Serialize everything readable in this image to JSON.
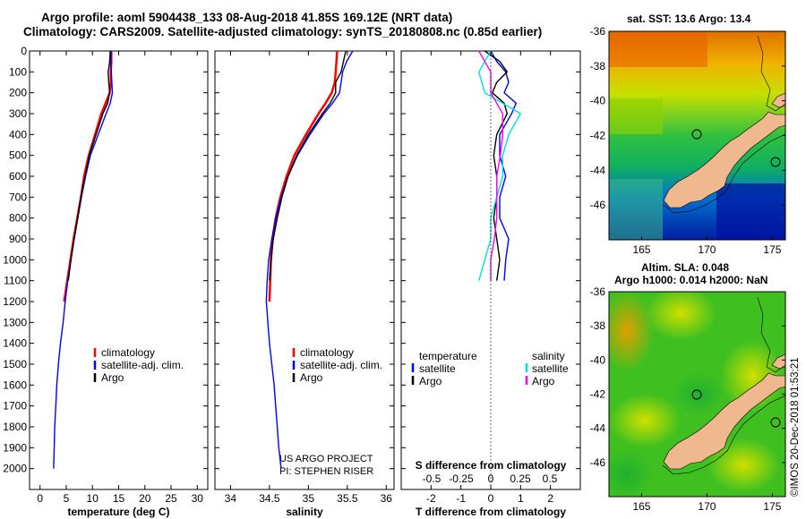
{
  "title_line1": "Argo profile: aoml 5904438_133 08-Aug-2018 41.85S 169.12E (NRT data)",
  "title_line2": "Climatology: CARS2009. Satellite-adjusted climatology: synTS_20180808.nc (0.85d earlier)",
  "map_sst_title": "sat. SST: 13.6 Argo: 13.4",
  "map_sla_title1": "Altim. SLA: 0.048",
  "map_sla_title2": "Argo h1000: 0.014 h2000: NaN",
  "credit_project": "US ARGO PROJECT",
  "credit_pi": "PI: STEPHEN RISER",
  "timestamp": "©IMOS 20-Dec-2018 01:53:21",
  "colors": {
    "climatology": "#ff0000",
    "satellite": "#0000ff",
    "argo": "#000000",
    "sat_salinity": "#00e0e0",
    "argo_salinity": "#ff00ff",
    "land": "#efb88e"
  },
  "chart_data": [
    {
      "type": "line",
      "name": "temperature-profile",
      "xlabel": "temperature (deg C)",
      "ylabel": "",
      "xlim": [
        -2,
        32
      ],
      "ylim": [
        2100,
        0
      ],
      "xticks": [
        0,
        5,
        10,
        15,
        20,
        25,
        30
      ],
      "yticks": [
        0,
        100,
        200,
        300,
        400,
        500,
        600,
        700,
        800,
        900,
        1000,
        1100,
        1200,
        1300,
        1400,
        1500,
        1600,
        1700,
        1800,
        1900,
        2000
      ],
      "legend": [
        "climatology",
        "satellite-adj. clim.",
        "Argo"
      ],
      "series": [
        {
          "name": "climatology",
          "color": "#ff0000",
          "depth": [
            0,
            50,
            100,
            150,
            200,
            250,
            300,
            400,
            500,
            600,
            700,
            800,
            900,
            1000,
            1100,
            1200
          ],
          "values": [
            13.6,
            13.6,
            13.5,
            13.5,
            13.3,
            12.5,
            11.7,
            10.5,
            9.3,
            8.4,
            7.8,
            7.1,
            6.4,
            5.8,
            5.2,
            4.6
          ]
        },
        {
          "name": "satellite-adj. clim.",
          "color": "#0000ff",
          "depth": [
            0,
            50,
            100,
            150,
            200,
            250,
            300,
            400,
            500,
            600,
            700,
            800,
            900,
            1000,
            1100,
            1200,
            1300,
            1400,
            1500,
            1600,
            1700,
            1800,
            1900,
            2000
          ],
          "values": [
            13.6,
            13.5,
            13.6,
            13.7,
            13.8,
            13.4,
            12.6,
            11.1,
            9.6,
            8.7,
            7.9,
            7.2,
            6.5,
            5.9,
            5.3,
            4.8,
            4.4,
            3.9,
            3.5,
            3.2,
            3.0,
            2.8,
            2.7,
            2.6
          ]
        },
        {
          "name": "Argo",
          "color": "#000000",
          "depth": [
            0,
            50,
            100,
            150,
            200,
            250,
            300,
            400,
            500,
            600,
            700,
            800,
            900,
            1000,
            1100
          ],
          "values": [
            13.4,
            13.3,
            13.0,
            13.1,
            13.3,
            12.9,
            12.0,
            10.7,
            9.4,
            8.6,
            7.8,
            7.2,
            6.5,
            5.9,
            5.4
          ]
        }
      ]
    },
    {
      "type": "line",
      "name": "salinity-profile",
      "xlabel": "salinity",
      "ylabel": "",
      "xlim": [
        33.8,
        36.1
      ],
      "ylim": [
        2100,
        0
      ],
      "xticks": [
        34,
        34.5,
        35,
        35.5,
        36
      ],
      "legend": [
        "climatology",
        "satellite-adj. clim.",
        "Argo"
      ],
      "series": [
        {
          "name": "climatology",
          "color": "#ff0000",
          "depth": [
            0,
            50,
            100,
            150,
            200,
            250,
            300,
            400,
            500,
            600,
            700,
            800,
            900,
            1000,
            1100,
            1200
          ],
          "values": [
            35.37,
            35.36,
            35.35,
            35.34,
            35.3,
            35.22,
            35.13,
            34.97,
            34.82,
            34.72,
            34.64,
            34.58,
            34.54,
            34.52,
            34.51,
            34.5
          ]
        },
        {
          "name": "satellite-adj. clim.",
          "color": "#0000ff",
          "depth": [
            0,
            50,
            100,
            150,
            200,
            250,
            300,
            400,
            500,
            600,
            700,
            800,
            900,
            1000,
            1100,
            1200,
            1300,
            1400,
            1500,
            1600,
            1700,
            1800,
            1900,
            2000
          ],
          "values": [
            35.57,
            35.49,
            35.44,
            35.42,
            35.4,
            35.31,
            35.2,
            35.02,
            34.86,
            34.74,
            34.65,
            34.58,
            34.53,
            34.49,
            34.47,
            34.46,
            34.48,
            34.5,
            34.53,
            34.56,
            34.58,
            34.6,
            34.62,
            34.65
          ]
        },
        {
          "name": "Argo",
          "color": "#000000",
          "depth": [
            0,
            50,
            100,
            150,
            200,
            250,
            300,
            400,
            500,
            600,
            700,
            800,
            900,
            1000,
            1100
          ],
          "values": [
            35.48,
            35.45,
            35.42,
            35.35,
            35.35,
            35.28,
            35.18,
            35.0,
            34.85,
            34.74,
            34.66,
            34.6,
            34.55,
            34.52,
            34.5
          ]
        }
      ]
    },
    {
      "type": "line",
      "name": "difference-profile",
      "xlabel": "T difference from climatology",
      "xlabel_top": "S difference from climatology",
      "xlim": [
        -3,
        3
      ],
      "ylim": [
        2100,
        0
      ],
      "xticks": [
        -2,
        -1,
        0,
        1,
        2
      ],
      "xtick_labels_top": [
        "-0.5",
        "-0.25",
        "0",
        "0.25",
        "0.5"
      ],
      "legend_temperature": [
        "temperature",
        "satellite",
        "Argo"
      ],
      "legend_salinity": [
        "salinity",
        "satellite",
        "Argo"
      ],
      "series": [
        {
          "name": "T satellite",
          "color": "#0000ff",
          "depth": [
            0,
            50,
            100,
            150,
            200,
            250,
            300,
            400,
            500,
            600,
            700,
            800,
            900,
            1000,
            1100
          ],
          "values": [
            0.0,
            0.2,
            0.5,
            0.6,
            0.45,
            0.85,
            0.7,
            0.3,
            0.3,
            0.5,
            0.3,
            0.3,
            0.6,
            0.5,
            0.45
          ]
        },
        {
          "name": "T Argo",
          "color": "#000000",
          "depth": [
            0,
            50,
            100,
            150,
            200,
            250,
            300,
            400,
            500,
            600,
            700,
            800,
            900,
            1000,
            1100
          ],
          "values": [
            -0.2,
            0.3,
            0.55,
            0.2,
            0.05,
            0.45,
            0.55,
            0.2,
            0.1,
            0.2,
            0.2,
            0.1,
            0.2,
            0.3,
            0.2
          ]
        },
        {
          "name": "S satellite",
          "color": "#00e0e0",
          "depth": [
            0,
            50,
            100,
            200,
            300,
            400,
            500,
            600,
            700,
            800,
            900,
            1000,
            1100
          ],
          "values": [
            0.0,
            -0.05,
            -0.1,
            -0.05,
            0.25,
            0.15,
            0.1,
            0.1,
            0.05,
            0.0,
            0.0,
            -0.05,
            -0.1
          ]
        },
        {
          "name": "S Argo",
          "color": "#ff00ff",
          "depth": [
            0,
            50,
            100,
            200,
            300,
            400,
            500,
            600,
            700,
            800,
            900,
            1000,
            1100
          ],
          "values": [
            -0.1,
            -0.05,
            0.0,
            0.0,
            0.1,
            0.1,
            0.08,
            0.05,
            0.05,
            0.05,
            0.03,
            0.0,
            0.0
          ]
        }
      ]
    },
    {
      "type": "heatmap",
      "name": "sst-map",
      "title": "sat. SST: 13.6 Argo: 13.4",
      "xticks": [
        165,
        170,
        175
      ],
      "yticks": [
        -36,
        -38,
        -40,
        -42,
        -44,
        -46
      ],
      "xlim": [
        162.5,
        176
      ],
      "ylim": [
        -48,
        -36
      ]
    },
    {
      "type": "heatmap",
      "name": "sla-map",
      "title": "Altim. SLA: 0.048 / Argo h1000: 0.014 h2000: NaN",
      "xticks": [
        165,
        170,
        175
      ],
      "yticks": [
        -36,
        -38,
        -40,
        -42,
        -44,
        -46
      ],
      "xlim": [
        162.5,
        176
      ],
      "ylim": [
        -48,
        -36
      ]
    }
  ]
}
